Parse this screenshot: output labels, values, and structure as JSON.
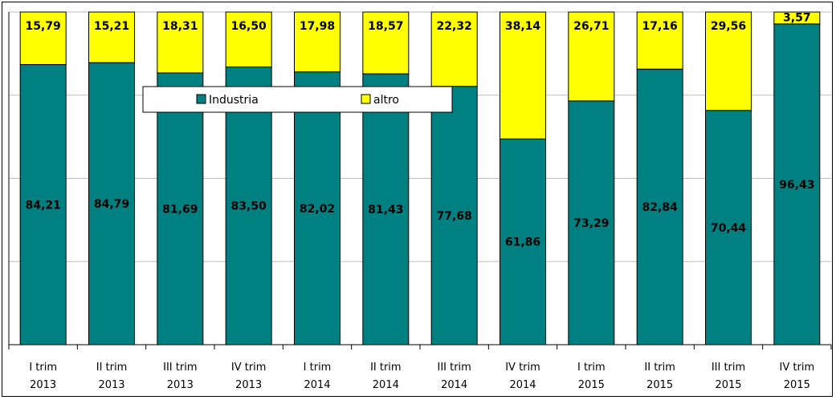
{
  "chart_data": {
    "type": "bar",
    "stacked": true,
    "percent": true,
    "title": "",
    "xlabel": "",
    "ylabel": "",
    "ylim": [
      0,
      100
    ],
    "grid": true,
    "legend_position": "top-center",
    "categories": [
      [
        "I trim",
        "2013"
      ],
      [
        "II trim",
        "2013"
      ],
      [
        "III trim",
        "2013"
      ],
      [
        "IV trim",
        "2013"
      ],
      [
        "I trim",
        "2014"
      ],
      [
        "II trim",
        "2014"
      ],
      [
        "III trim",
        "2014"
      ],
      [
        "IV trim",
        "2014"
      ],
      [
        "I trim",
        "2015"
      ],
      [
        "II trim",
        "2015"
      ],
      [
        "III trim",
        "2015"
      ],
      [
        "IV trim",
        "2015"
      ]
    ],
    "series": [
      {
        "name": "Industria",
        "color": "#008080",
        "values": [
          84.21,
          84.79,
          81.69,
          83.5,
          82.02,
          81.43,
          77.68,
          61.86,
          73.29,
          82.84,
          70.44,
          96.43
        ],
        "labels": [
          "84,21",
          "84,79",
          "81,69",
          "83,50",
          "82,02",
          "81,43",
          "77,68",
          "61,86",
          "73,29",
          "82,84",
          "70,44",
          "96,43"
        ]
      },
      {
        "name": "altro",
        "color": "#FFFF00",
        "values": [
          15.79,
          15.21,
          18.31,
          16.5,
          17.98,
          18.57,
          22.32,
          38.14,
          26.71,
          17.16,
          29.56,
          3.57
        ],
        "labels": [
          "15,79",
          "15,21",
          "18,31",
          "16,50",
          "17,98",
          "18,57",
          "22,32",
          "38,14",
          "26,71",
          "17,16",
          "29,56",
          "3,57"
        ]
      }
    ]
  }
}
